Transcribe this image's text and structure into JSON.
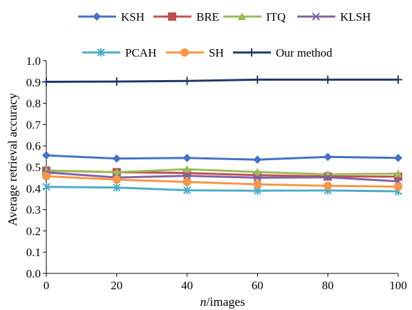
{
  "chart_data": {
    "type": "line",
    "title": "",
    "xlabel_italic": "n",
    "xlabel_rest": "/images",
    "ylabel": "Average retrieval accuracy",
    "x": [
      0,
      20,
      40,
      60,
      80,
      100
    ],
    "x_tick_labels": [
      "0",
      "20",
      "40",
      "60",
      "80",
      "100"
    ],
    "xlim": [
      0,
      100
    ],
    "ylim": [
      0,
      1.0
    ],
    "y_tick_labels": [
      "0.0",
      "0.1",
      "0.2",
      "0.3",
      "0.4",
      "0.5",
      "0.6",
      "0.7",
      "0.8",
      "0.9",
      "1.0"
    ],
    "grid": false,
    "legend_position": "top",
    "series": [
      {
        "name": "KSH",
        "color": "#4472C4",
        "marker": "diamond",
        "values": [
          0.555,
          0.54,
          0.543,
          0.535,
          0.548,
          0.543
        ]
      },
      {
        "name": "BRE",
        "color": "#C0504D",
        "marker": "square",
        "values": [
          0.483,
          0.476,
          0.472,
          0.462,
          0.456,
          0.455
        ]
      },
      {
        "name": "ITQ",
        "color": "#9BBB59",
        "marker": "triangle",
        "values": [
          0.484,
          0.476,
          0.49,
          0.477,
          0.466,
          0.469
        ]
      },
      {
        "name": "KLSH",
        "color": "#8064A2",
        "marker": "x",
        "values": [
          0.475,
          0.451,
          0.459,
          0.45,
          0.452,
          0.433
        ]
      },
      {
        "name": "PCAH",
        "color": "#4BACC6",
        "marker": "asterisk",
        "values": [
          0.407,
          0.404,
          0.391,
          0.389,
          0.39,
          0.386
        ]
      },
      {
        "name": "SH",
        "color": "#F79646",
        "marker": "circle",
        "values": [
          0.457,
          0.441,
          0.43,
          0.419,
          0.412,
          0.408
        ]
      },
      {
        "name": "Our method",
        "color": "#1F3864",
        "marker": "plus",
        "values": [
          0.901,
          0.902,
          0.905,
          0.911,
          0.911,
          0.911
        ]
      }
    ]
  }
}
